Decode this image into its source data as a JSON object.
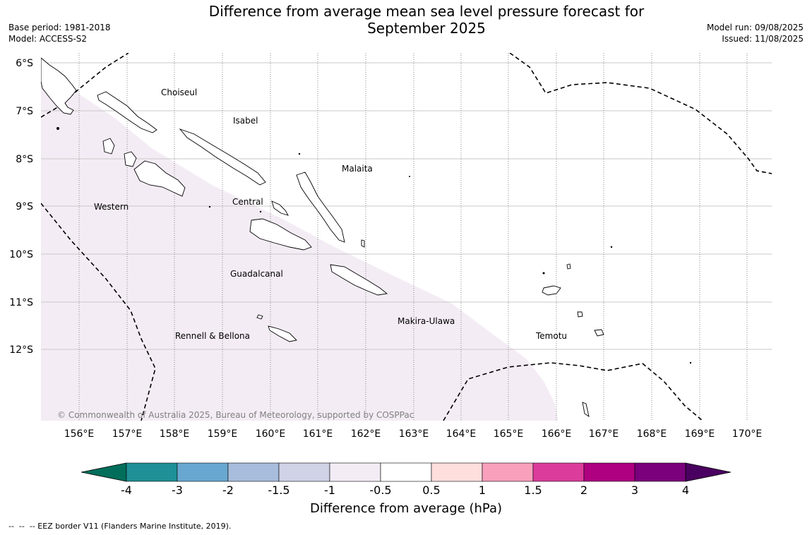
{
  "header": {
    "title_line1": "Difference from average mean sea level pressure forecast for",
    "title_line2": "September 2025",
    "base_period": "Base period: 1981-2018",
    "model": "Model: ACCESS-S2",
    "model_run": "Model run: 09/08/2025",
    "issued": "Issued: 11/08/2025"
  },
  "map": {
    "lat_labels": [
      "6°S",
      "7°S",
      "8°S",
      "9°S",
      "10°S",
      "11°S",
      "12°S"
    ],
    "lon_labels": [
      "156°E",
      "157°E",
      "158°E",
      "159°E",
      "160°E",
      "161°E",
      "162°E",
      "163°E",
      "164°E",
      "165°E",
      "166°E",
      "167°E",
      "168°E",
      "169°E",
      "170°E"
    ],
    "places": {
      "choiseul": "Choiseul",
      "isabel": "Isabel",
      "malaita": "Malaita",
      "central": "Central",
      "western": "Western",
      "guadalcanal": "Guadalcanal",
      "makira_ulawa": "Makira-Ulawa",
      "temotu": "Temotu",
      "rennell_bellona": "Rennell & Bellona"
    },
    "copyright": "© Commonwealth of Australia 2025, Bureau of Meteorology, supported by COSPPac",
    "anomaly_shading": {
      "category": "-1 to -0.5",
      "color": "#f4ecf5"
    }
  },
  "colorbar": {
    "label": "Difference from average (hPa)",
    "ticks": [
      "-4",
      "-3",
      "-2",
      "-1.5",
      "-1",
      "-0.5",
      "0.5",
      "1",
      "1.5",
      "2",
      "3",
      "4"
    ],
    "under_color": "#006e5b",
    "over_color": "#4a0060",
    "colors": [
      "#1e9096",
      "#68a8d0",
      "#a8bcdc",
      "#d0d2e6",
      "#f4ecf5",
      "#ffffff",
      "#ffdede",
      "#f8a0bc",
      "#dc3c9c",
      "#ae0080",
      "#7a007c"
    ]
  },
  "footnote": "--  --  -- EEZ border V11 (Flanders Marine Institute, 2019)."
}
